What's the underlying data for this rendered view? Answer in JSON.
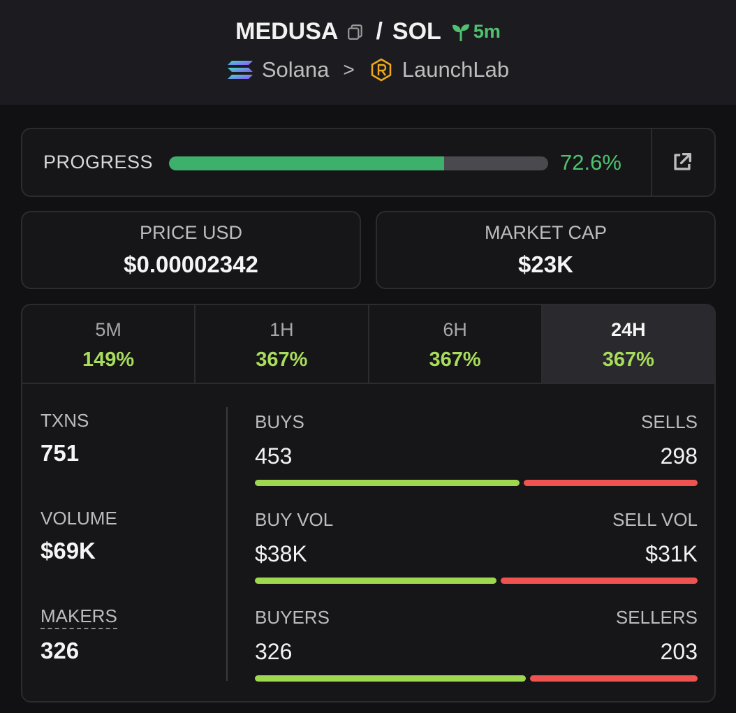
{
  "header": {
    "token": "MEDUSA",
    "separator": "/",
    "quote": "SOL",
    "age": "5m",
    "chain": "Solana",
    "chevron": ">",
    "launchpad": "LaunchLab"
  },
  "progress": {
    "label": "PROGRESS",
    "value_text": "72.6%",
    "fraction": 0.726
  },
  "price": {
    "label": "PRICE USD",
    "value": "$0.00002342"
  },
  "market_cap": {
    "label": "MARKET CAP",
    "value": "$23K"
  },
  "tabs": [
    {
      "label": "5M",
      "value": "149%",
      "active": false
    },
    {
      "label": "1H",
      "value": "367%",
      "active": false
    },
    {
      "label": "6H",
      "value": "367%",
      "active": false
    },
    {
      "label": "24H",
      "value": "367%",
      "active": true
    }
  ],
  "metrics": {
    "txns": {
      "label": "TXNS",
      "value": "751"
    },
    "volume": {
      "label": "VOLUME",
      "value": "$69K"
    },
    "makers": {
      "label": "MAKERS",
      "value": "326"
    }
  },
  "ratios": {
    "txns": {
      "left_label": "BUYS",
      "right_label": "SELLS",
      "left_value": "453",
      "right_value": "298",
      "left_share": 0.603
    },
    "volume": {
      "left_label": "BUY VOL",
      "right_label": "SELL VOL",
      "left_value": "$38K",
      "right_value": "$31K",
      "left_share": 0.551
    },
    "makers": {
      "left_label": "BUYERS",
      "right_label": "SELLERS",
      "left_value": "326",
      "right_value": "203",
      "left_share": 0.616
    }
  },
  "colors": {
    "positive": "#a8dd5c",
    "progress": "#3db06b",
    "buy_bar": "#9fd84f",
    "sell_bar": "#ef5350"
  },
  "icons": {
    "copy": "copy-icon",
    "age": "sprout-icon",
    "chain": "solana-icon",
    "launchpad": "launchlab-icon",
    "external": "external-link-icon"
  }
}
